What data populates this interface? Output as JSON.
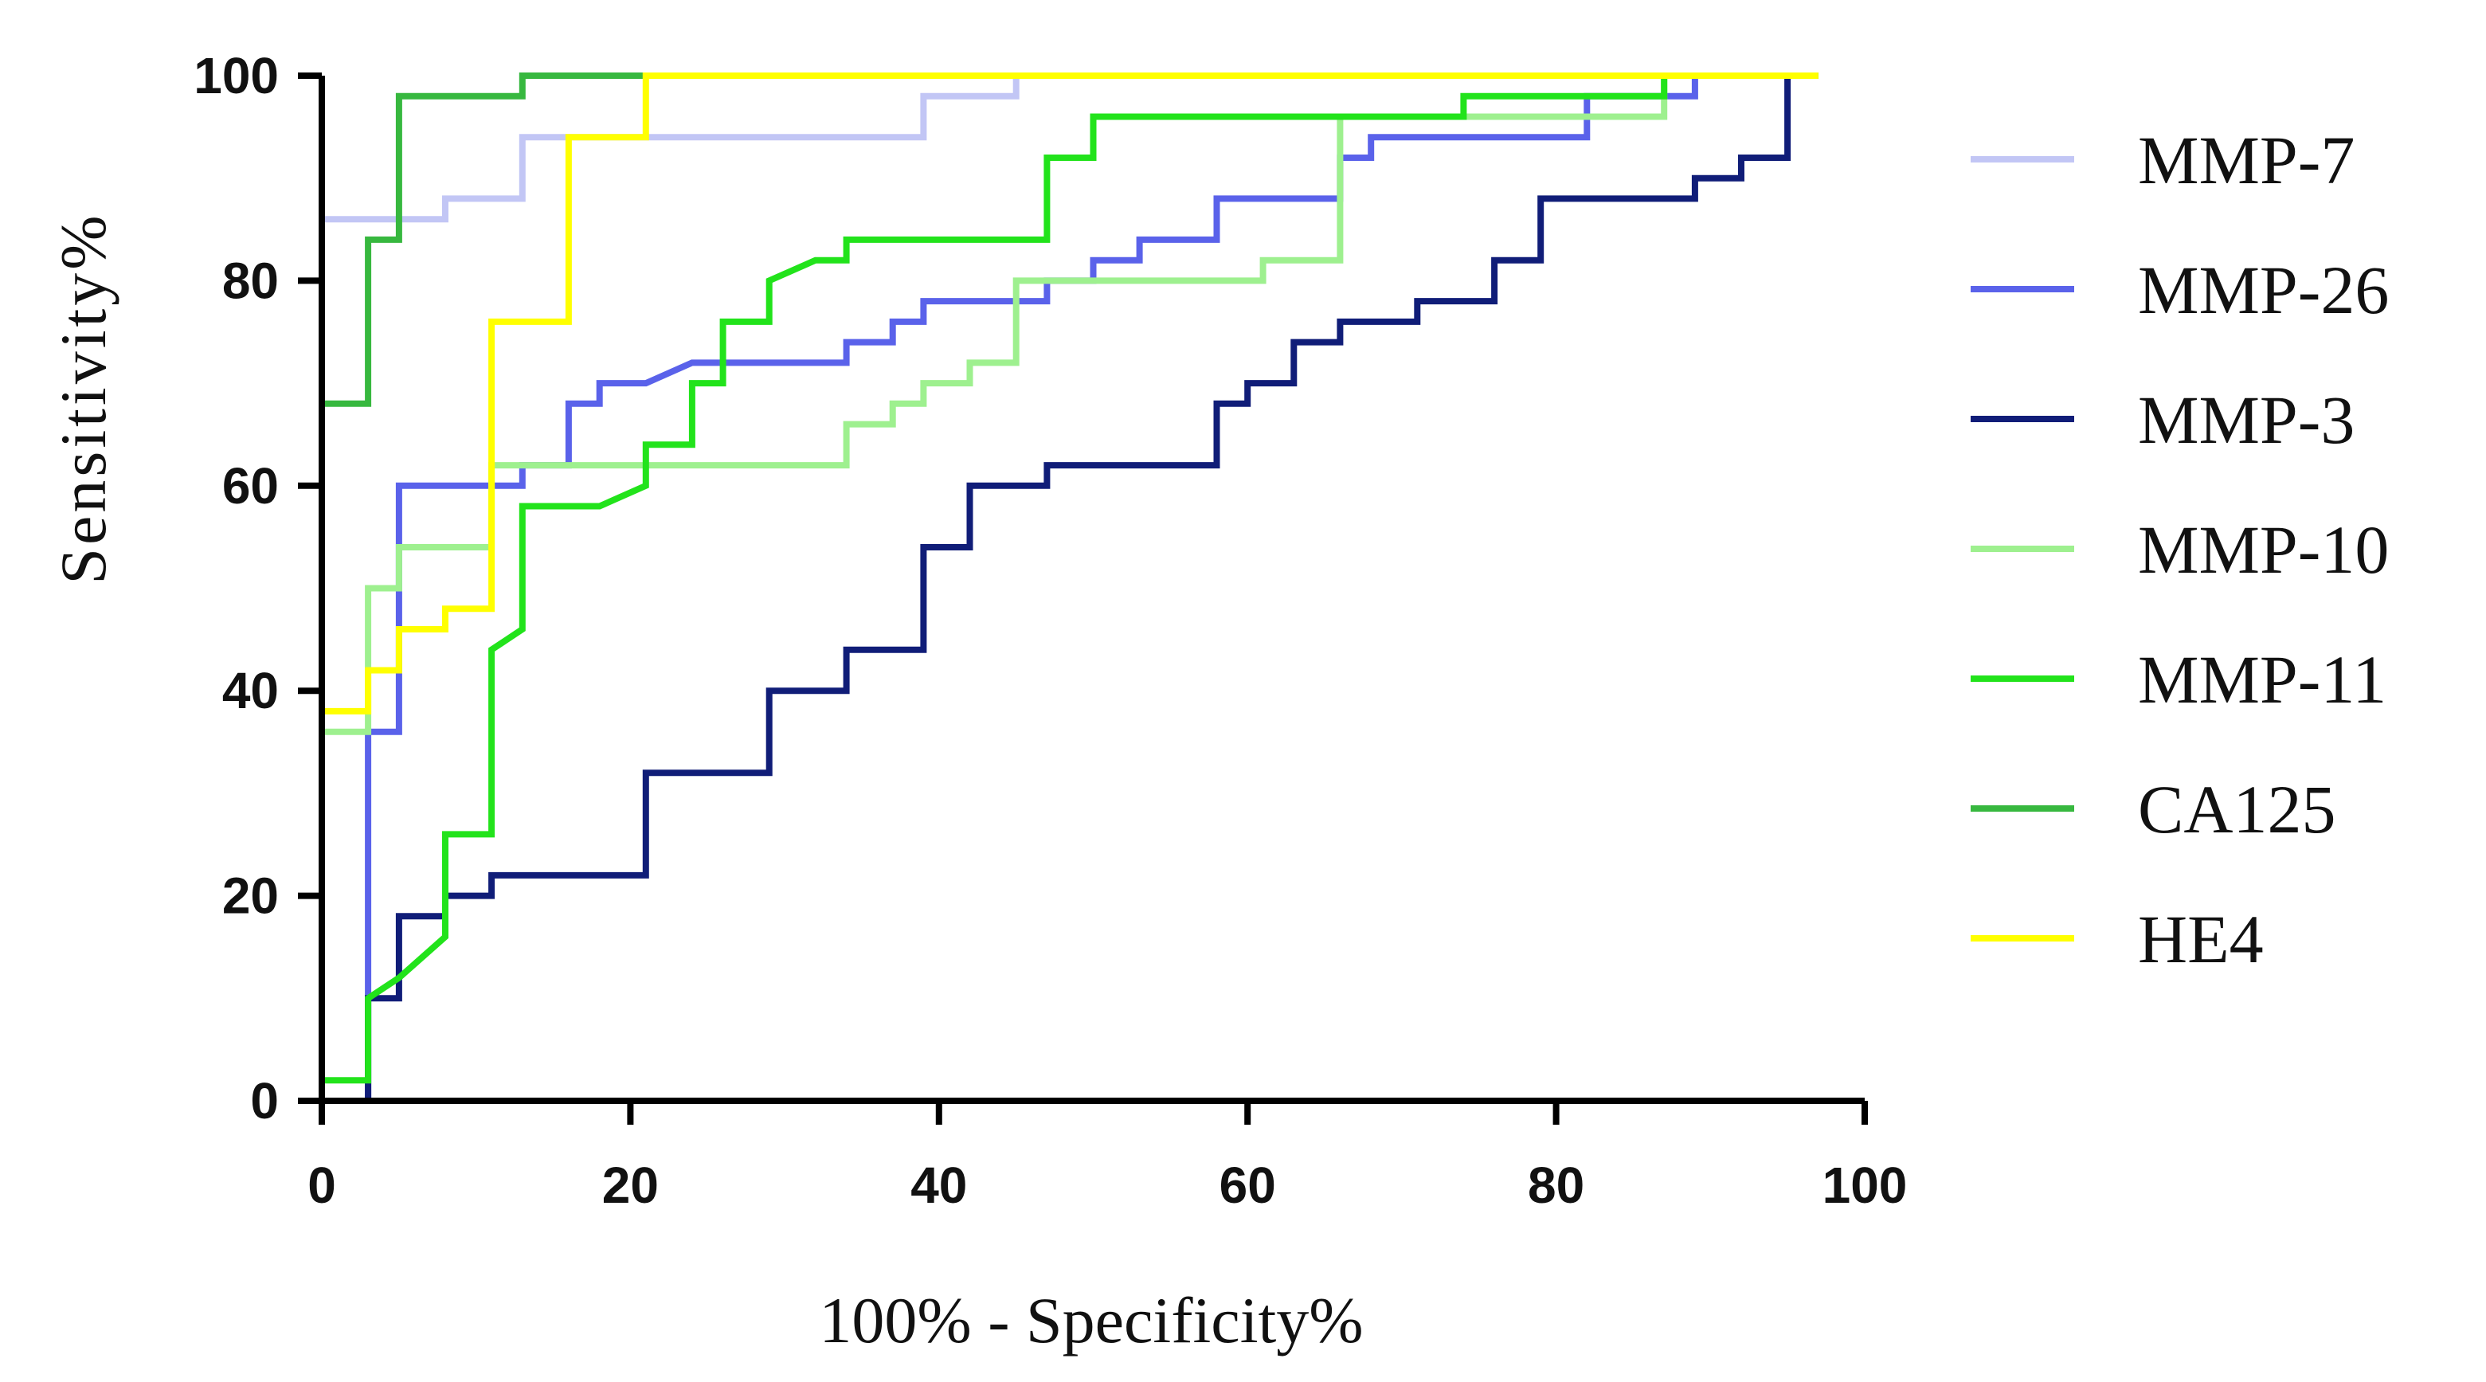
{
  "chart_data": {
    "type": "line",
    "title": "",
    "xlabel": "100% - Specificity%",
    "ylabel": "Sensitivity%",
    "xlim": [
      0,
      100
    ],
    "ylim": [
      0,
      100
    ],
    "xticks": [
      "0",
      "20",
      "40",
      "60",
      "80",
      "100"
    ],
    "yticks": [
      "0",
      "20",
      "40",
      "60",
      "80",
      "100"
    ],
    "legend_position": "right",
    "series": [
      {
        "name": "MMP-7",
        "color": "#c2c6f5",
        "points": [
          [
            0,
            0
          ],
          [
            0,
            68
          ],
          [
            0,
            86
          ],
          [
            8,
            86
          ],
          [
            8,
            88
          ],
          [
            13,
            88
          ],
          [
            13,
            94
          ],
          [
            39,
            94
          ],
          [
            39,
            98
          ],
          [
            45,
            98
          ],
          [
            45,
            100
          ],
          [
            97,
            100
          ]
        ]
      },
      {
        "name": "MMP-26",
        "color": "#5a62ea",
        "points": [
          [
            0,
            0
          ],
          [
            3,
            0
          ],
          [
            3,
            36
          ],
          [
            5,
            36
          ],
          [
            5,
            60
          ],
          [
            13,
            60
          ],
          [
            13,
            62
          ],
          [
            16,
            62
          ],
          [
            16,
            68
          ],
          [
            18,
            68
          ],
          [
            18,
            70
          ],
          [
            21,
            70
          ],
          [
            24,
            72
          ],
          [
            34,
            72
          ],
          [
            34,
            74
          ],
          [
            37,
            74
          ],
          [
            37,
            76
          ],
          [
            39,
            76
          ],
          [
            39,
            78
          ],
          [
            47,
            78
          ],
          [
            47,
            80
          ],
          [
            50,
            80
          ],
          [
            50,
            82
          ],
          [
            53,
            82
          ],
          [
            53,
            84
          ],
          [
            58,
            84
          ],
          [
            58,
            88
          ],
          [
            66,
            88
          ],
          [
            66,
            92
          ],
          [
            68,
            92
          ],
          [
            68,
            94
          ],
          [
            82,
            94
          ],
          [
            82,
            98
          ],
          [
            89,
            98
          ],
          [
            89,
            100
          ],
          [
            97,
            100
          ]
        ]
      },
      {
        "name": "MMP-3",
        "color": "#101d78",
        "points": [
          [
            0,
            0
          ],
          [
            3,
            0
          ],
          [
            3,
            10
          ],
          [
            5,
            10
          ],
          [
            5,
            18
          ],
          [
            8,
            18
          ],
          [
            8,
            20
          ],
          [
            11,
            20
          ],
          [
            11,
            22
          ],
          [
            21,
            22
          ],
          [
            21,
            32
          ],
          [
            29,
            32
          ],
          [
            29,
            40
          ],
          [
            34,
            40
          ],
          [
            34,
            44
          ],
          [
            39,
            44
          ],
          [
            39,
            54
          ],
          [
            42,
            54
          ],
          [
            42,
            60
          ],
          [
            47,
            60
          ],
          [
            47,
            62
          ],
          [
            58,
            62
          ],
          [
            58,
            68
          ],
          [
            60,
            68
          ],
          [
            60,
            70
          ],
          [
            63,
            70
          ],
          [
            63,
            74
          ],
          [
            66,
            74
          ],
          [
            66,
            76
          ],
          [
            71,
            76
          ],
          [
            71,
            78
          ],
          [
            76,
            78
          ],
          [
            76,
            82
          ],
          [
            79,
            82
          ],
          [
            79,
            88
          ],
          [
            89,
            88
          ],
          [
            89,
            90
          ],
          [
            92,
            90
          ],
          [
            92,
            92
          ],
          [
            95,
            92
          ],
          [
            95,
            100
          ],
          [
            97,
            100
          ]
        ]
      },
      {
        "name": "MMP-10",
        "color": "#9ef08f",
        "points": [
          [
            0,
            0
          ],
          [
            0,
            36
          ],
          [
            3,
            36
          ],
          [
            3,
            50
          ],
          [
            5,
            50
          ],
          [
            5,
            54
          ],
          [
            11,
            54
          ],
          [
            11,
            62
          ],
          [
            34,
            62
          ],
          [
            34,
            66
          ],
          [
            37,
            66
          ],
          [
            37,
            68
          ],
          [
            39,
            68
          ],
          [
            39,
            70
          ],
          [
            42,
            70
          ],
          [
            42,
            72
          ],
          [
            45,
            72
          ],
          [
            45,
            80
          ],
          [
            61,
            80
          ],
          [
            61,
            82
          ],
          [
            66,
            82
          ],
          [
            66,
            96
          ],
          [
            87,
            96
          ],
          [
            87,
            100
          ],
          [
            97,
            100
          ]
        ]
      },
      {
        "name": "MMP-11",
        "color": "#22e31b",
        "points": [
          [
            0,
            0
          ],
          [
            0,
            2
          ],
          [
            3,
            2
          ],
          [
            3,
            10
          ],
          [
            5,
            12
          ],
          [
            8,
            16
          ],
          [
            8,
            26
          ],
          [
            11,
            26
          ],
          [
            11,
            44
          ],
          [
            13,
            46
          ],
          [
            13,
            58
          ],
          [
            18,
            58
          ],
          [
            21,
            60
          ],
          [
            21,
            64
          ],
          [
            24,
            64
          ],
          [
            24,
            70
          ],
          [
            26,
            70
          ],
          [
            26,
            76
          ],
          [
            29,
            76
          ],
          [
            29,
            80
          ],
          [
            32,
            82
          ],
          [
            34,
            82
          ],
          [
            34,
            84
          ],
          [
            47,
            84
          ],
          [
            47,
            92
          ],
          [
            50,
            92
          ],
          [
            50,
            96
          ],
          [
            74,
            96
          ],
          [
            74,
            98
          ],
          [
            87,
            98
          ],
          [
            87,
            100
          ],
          [
            97,
            100
          ]
        ]
      },
      {
        "name": "CA125",
        "color": "#37b83f",
        "points": [
          [
            0,
            0
          ],
          [
            0,
            40
          ],
          [
            0,
            68
          ],
          [
            3,
            68
          ],
          [
            3,
            84
          ],
          [
            5,
            84
          ],
          [
            5,
            98
          ],
          [
            13,
            98
          ],
          [
            13,
            100
          ],
          [
            97,
            100
          ]
        ]
      },
      {
        "name": "HE4",
        "color": "#ffff00",
        "points": [
          [
            0,
            0
          ],
          [
            0,
            38
          ],
          [
            3,
            38
          ],
          [
            3,
            42
          ],
          [
            5,
            42
          ],
          [
            5,
            46
          ],
          [
            8,
            46
          ],
          [
            8,
            48
          ],
          [
            11,
            48
          ],
          [
            11,
            76
          ],
          [
            16,
            76
          ],
          [
            16,
            94
          ],
          [
            21,
            94
          ],
          [
            21,
            100
          ],
          [
            97,
            100
          ]
        ]
      }
    ]
  }
}
